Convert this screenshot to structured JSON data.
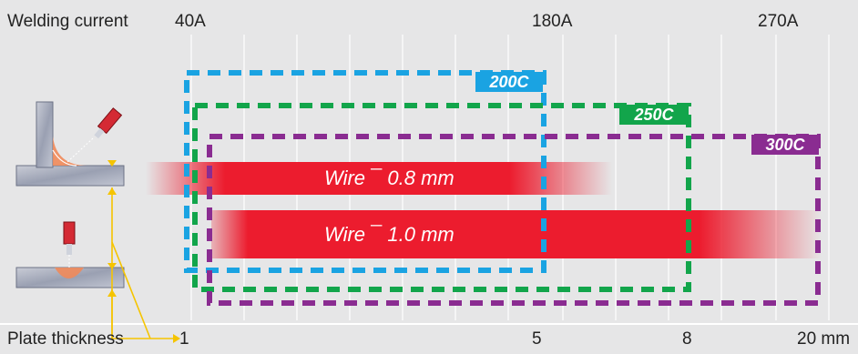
{
  "top_axis": {
    "label": "Welding current",
    "ticks": [
      "40A",
      "180A",
      "270A"
    ]
  },
  "bottom_axis": {
    "label": "Plate thickness",
    "ticks": [
      "1",
      "5",
      "8",
      "20 mm"
    ]
  },
  "wires": [
    {
      "label": "Wire ¯ 0.8 mm",
      "color": "#ec1c2e"
    },
    {
      "label": "Wire ¯ 1.0 mm",
      "color": "#ec1c2e"
    }
  ],
  "models": [
    {
      "label": "200C",
      "color": "#1aa3e2"
    },
    {
      "label": "250C",
      "color": "#12a54b"
    },
    {
      "label": "300C",
      "color": "#8a2c91"
    }
  ],
  "colors": {
    "background": "#e6e6e7",
    "grid": "#ffffff",
    "arrow": "#f5c400"
  },
  "icons": [
    "fillet-weld-torch-icon",
    "butt-weld-torch-icon",
    "pointer-arrow-icon"
  ]
}
